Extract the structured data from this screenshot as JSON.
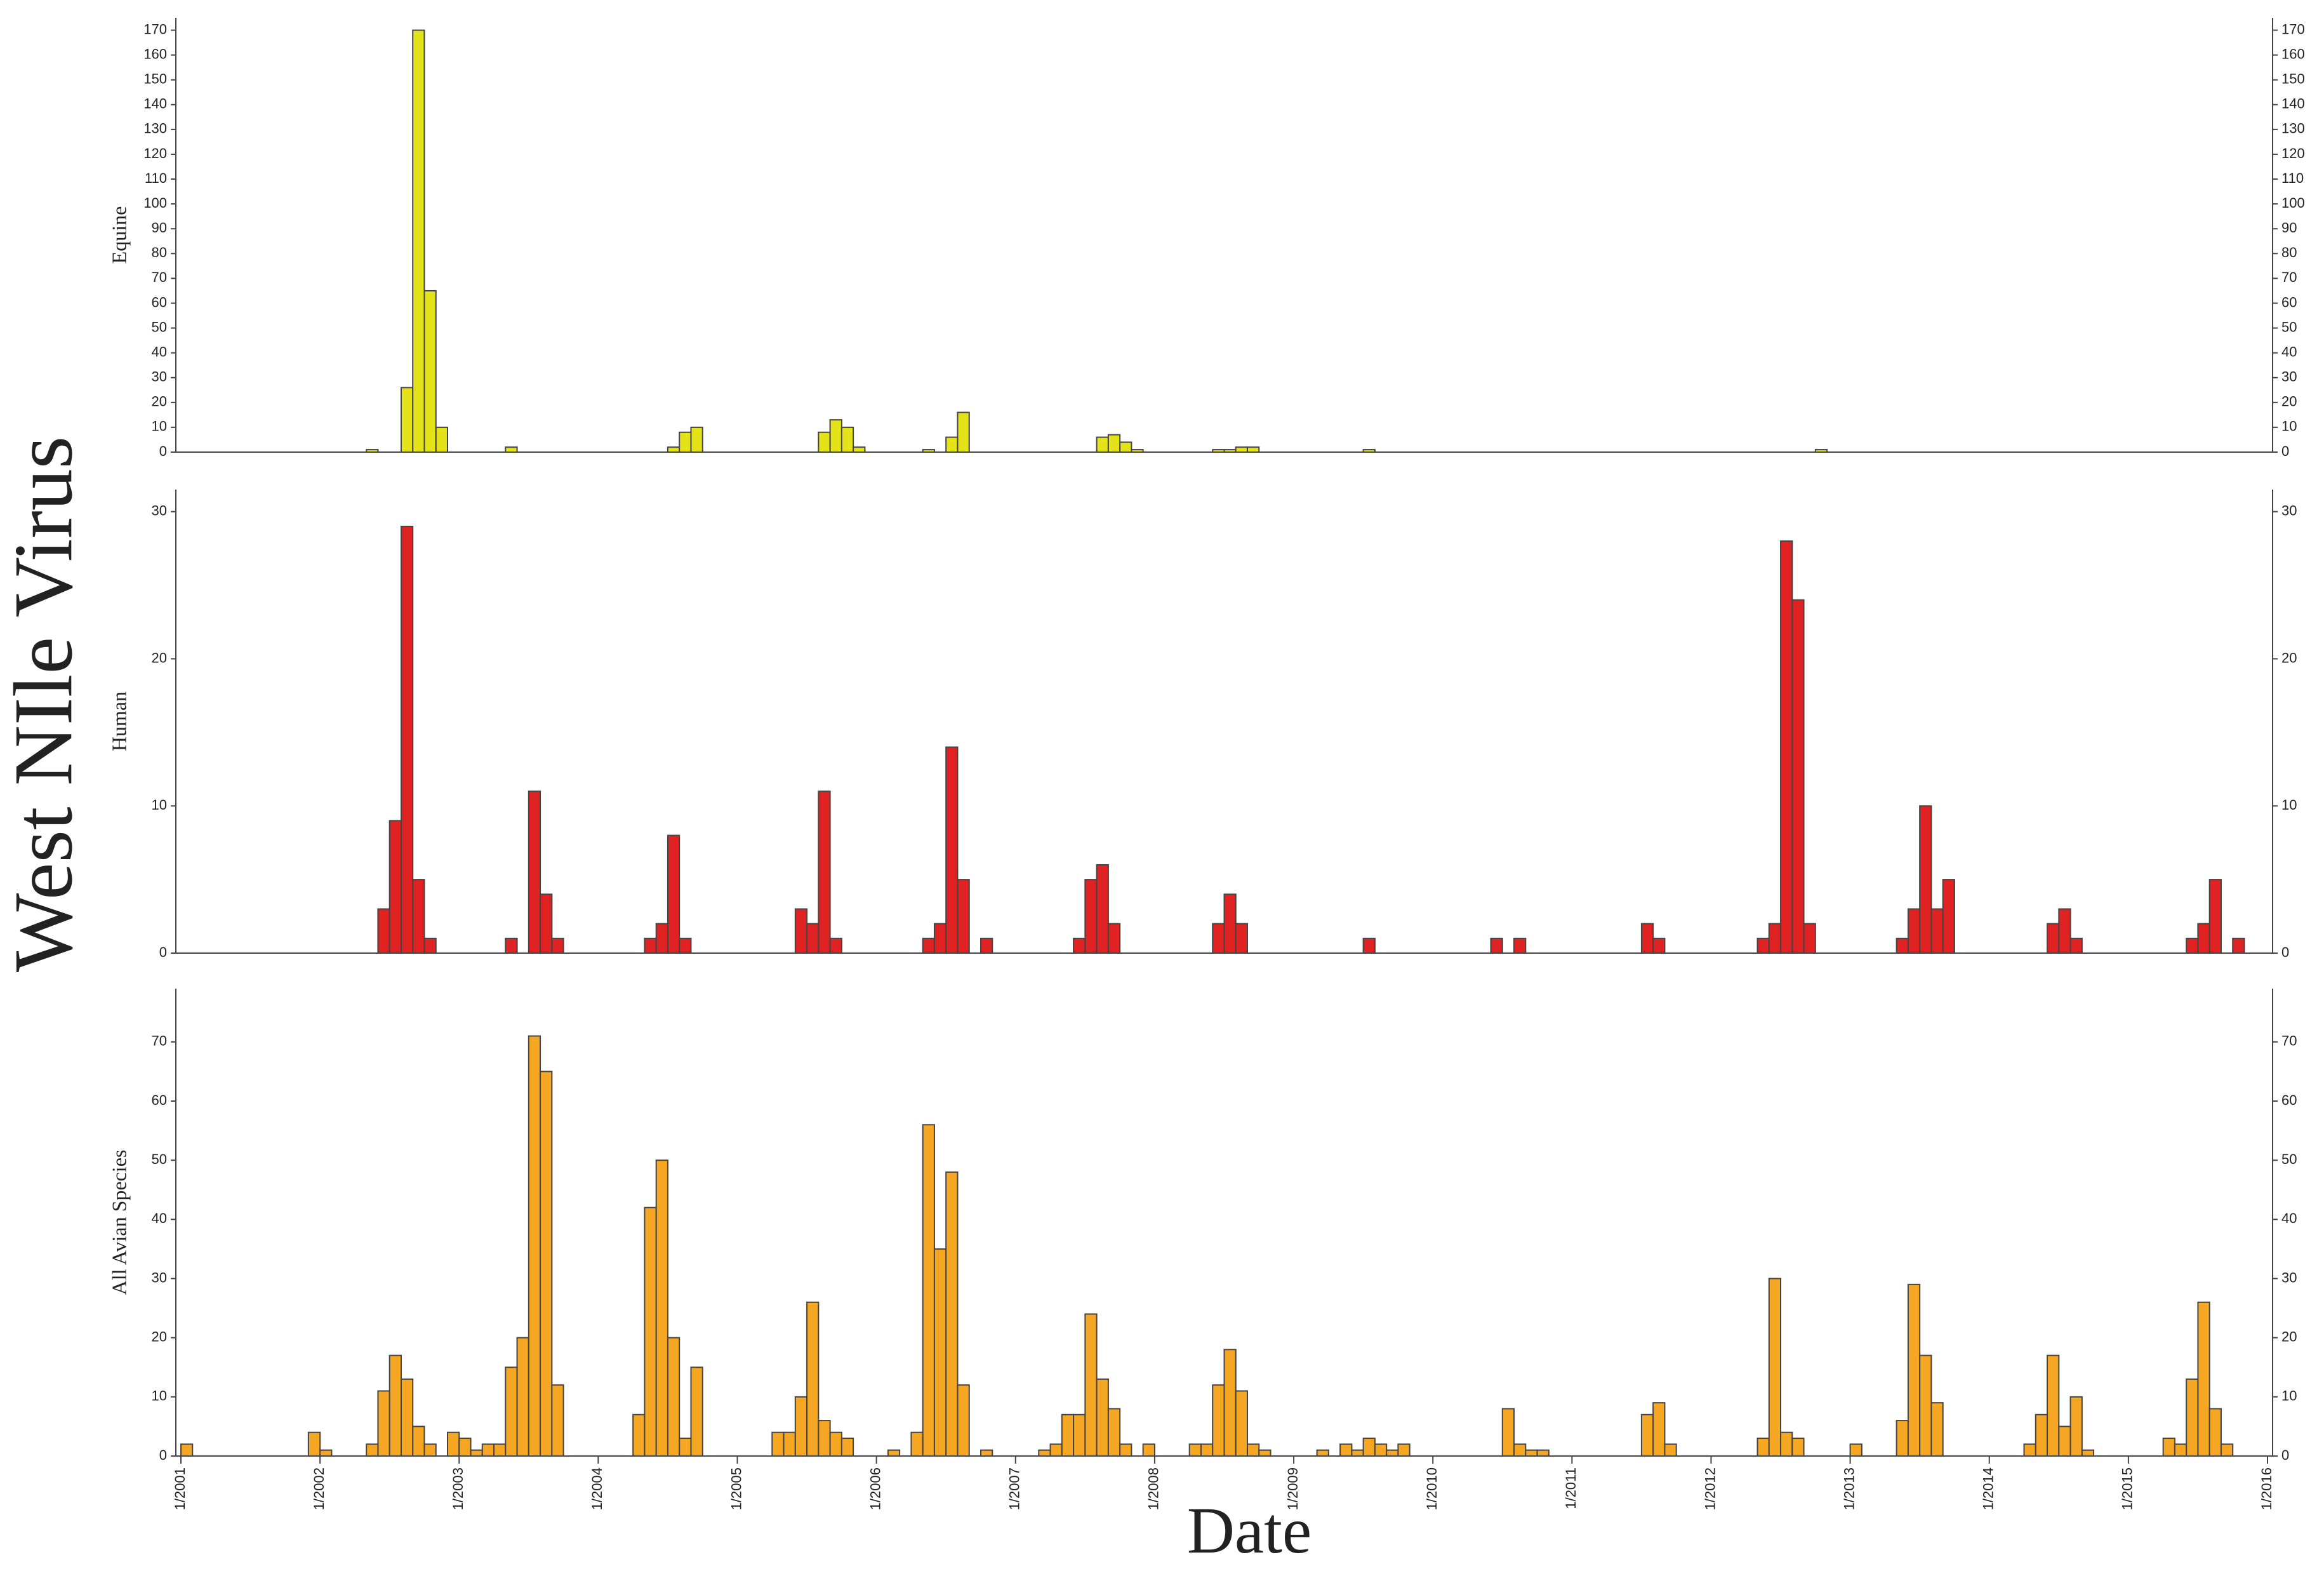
{
  "title": "West NIle Virus",
  "xlabel": "Date",
  "chart_data": [
    {
      "type": "bar",
      "ylabel": "Equine",
      "color": "#e4e31a",
      "xlim": [
        "1/2001",
        "1/2016"
      ],
      "ylim": [
        0,
        175
      ],
      "yticks": [
        0,
        10,
        20,
        30,
        40,
        50,
        60,
        70,
        80,
        90,
        100,
        110,
        120,
        130,
        140,
        150,
        160,
        170
      ],
      "x": [
        "5/2002",
        "8/2002",
        "9/2002",
        "10/2002",
        "11/2002",
        "5/2003",
        "7/2004",
        "8/2004",
        "9/2004",
        "8/2005",
        "9/2005",
        "10/2005",
        "11/2005",
        "5/2006",
        "7/2006",
        "8/2006",
        "8/2007",
        "9/2007",
        "10/2007",
        "11/2007",
        "6/2008",
        "7/2008",
        "8/2008",
        "9/2008",
        "7/2009",
        "10/2012"
      ],
      "values": [
        1,
        26,
        170,
        65,
        10,
        2,
        2,
        8,
        10,
        8,
        13,
        10,
        2,
        1,
        6,
        16,
        6,
        7,
        4,
        1,
        1,
        1,
        2,
        2,
        1,
        1
      ]
    },
    {
      "type": "bar",
      "ylabel": "Human",
      "color": "#e02222",
      "xlim": [
        "1/2001",
        "1/2016"
      ],
      "ylim": [
        0,
        31.5
      ],
      "yticks": [
        0,
        10,
        20,
        30
      ],
      "x": [
        "6/2002",
        "7/2002",
        "8/2002",
        "9/2002",
        "10/2002",
        "5/2003",
        "7/2003",
        "8/2003",
        "9/2003",
        "5/2004",
        "6/2004",
        "7/2004",
        "8/2004",
        "6/2005",
        "7/2005",
        "8/2005",
        "9/2005",
        "5/2006",
        "6/2006",
        "7/2006",
        "8/2006",
        "10/2006",
        "6/2007",
        "7/2007",
        "8/2007",
        "9/2007",
        "6/2008",
        "7/2008",
        "8/2008",
        "7/2009",
        "6/2010",
        "8/2010",
        "7/2011",
        "8/2011",
        "5/2012",
        "6/2012",
        "7/2012",
        "8/2012",
        "9/2012",
        "5/2013",
        "6/2013",
        "7/2013",
        "8/2013",
        "9/2013",
        "6/2014",
        "7/2014",
        "8/2014",
        "6/2015",
        "7/2015",
        "8/2015",
        "10/2015"
      ],
      "values": [
        3,
        9,
        29,
        5,
        1,
        1,
        11,
        4,
        1,
        1,
        2,
        8,
        1,
        3,
        2,
        11,
        1,
        1,
        2,
        14,
        5,
        1,
        1,
        5,
        6,
        2,
        2,
        4,
        2,
        1,
        1,
        1,
        2,
        1,
        1,
        2,
        28,
        24,
        2,
        1,
        3,
        10,
        3,
        5,
        2,
        3,
        1,
        1,
        2,
        5,
        1
      ]
    },
    {
      "type": "bar",
      "ylabel": "All Avian Species",
      "color": "#f5a623",
      "xlim": [
        "1/2001",
        "1/2016"
      ],
      "ylim": [
        0,
        79
      ],
      "yticks": [
        0,
        10,
        20,
        30,
        40,
        50,
        60,
        70
      ],
      "xticks": [
        "1/2001",
        "1/2002",
        "1/2003",
        "1/2004",
        "1/2005",
        "1/2006",
        "1/2007",
        "1/2008",
        "1/2009",
        "1/2010",
        "1/2011",
        "1/2012",
        "1/2013",
        "1/2014",
        "1/2015",
        "1/2016"
      ],
      "x": [
        "1/2001",
        "12/2001",
        "1/2002",
        "5/2002",
        "6/2002",
        "7/2002",
        "8/2002",
        "9/2002",
        "10/2002",
        "12/2002",
        "1/2003",
        "2/2003",
        "3/2003",
        "4/2003",
        "5/2003",
        "6/2003",
        "7/2003",
        "8/2003",
        "9/2003",
        "4/2004",
        "5/2004",
        "6/2004",
        "7/2004",
        "8/2004",
        "9/2004",
        "4/2005",
        "5/2005",
        "6/2005",
        "7/2005",
        "8/2005",
        "9/2005",
        "10/2005",
        "2/2006",
        "4/2006",
        "5/2006",
        "6/2006",
        "7/2006",
        "8/2006",
        "10/2006",
        "3/2007",
        "4/2007",
        "5/2007",
        "6/2007",
        "7/2007",
        "8/2007",
        "9/2007",
        "10/2007",
        "12/2007",
        "4/2008",
        "5/2008",
        "6/2008",
        "7/2008",
        "8/2008",
        "9/2008",
        "10/2008",
        "3/2009",
        "5/2009",
        "6/2009",
        "7/2009",
        "8/2009",
        "9/2009",
        "10/2009",
        "7/2010",
        "8/2010",
        "9/2010",
        "10/2010",
        "7/2011",
        "8/2011",
        "9/2011",
        "5/2012",
        "6/2012",
        "7/2012",
        "8/2012",
        "1/2013",
        "5/2013",
        "6/2013",
        "7/2013",
        "8/2013",
        "4/2014",
        "5/2014",
        "6/2014",
        "7/2014",
        "8/2014",
        "9/2014",
        "4/2015",
        "5/2015",
        "6/2015",
        "7/2015",
        "8/2015",
        "9/2015"
      ],
      "values": [
        2,
        4,
        1,
        2,
        11,
        17,
        13,
        5,
        2,
        4,
        3,
        1,
        2,
        2,
        15,
        20,
        71,
        65,
        12,
        7,
        42,
        50,
        20,
        3,
        15,
        4,
        4,
        10,
        26,
        6,
        4,
        3,
        1,
        4,
        56,
        35,
        48,
        12,
        1,
        1,
        2,
        7,
        7,
        24,
        13,
        8,
        2,
        2,
        2,
        2,
        12,
        18,
        11,
        2,
        1,
        1,
        2,
        1,
        3,
        2,
        1,
        2,
        8,
        2,
        1,
        1,
        7,
        9,
        2,
        3,
        30,
        4,
        3,
        2,
        6,
        29,
        17,
        9,
        2,
        7,
        17,
        5,
        10,
        1,
        3,
        2,
        13,
        26,
        8,
        2
      ]
    }
  ]
}
